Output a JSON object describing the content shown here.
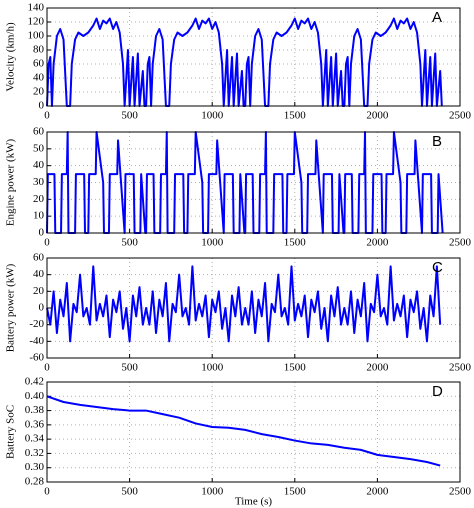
{
  "chart_data": [
    {
      "type": "line",
      "ylabel": "Velocity (km/h)",
      "annotation": "A",
      "color": "#0000ff",
      "grid": true,
      "xlim": [
        0,
        2500
      ],
      "xticks": [
        0,
        500,
        1000,
        1500,
        2000,
        2500
      ],
      "ylim": [
        0,
        140
      ],
      "yticks": [
        0,
        20,
        40,
        60,
        80,
        100,
        120,
        140
      ],
      "x": [
        0,
        10,
        20,
        30,
        40,
        60,
        80,
        100,
        120,
        140,
        150,
        170,
        190,
        220,
        250,
        280,
        300,
        320,
        340,
        360,
        380,
        400,
        420,
        440,
        460,
        470,
        490,
        500,
        520,
        530,
        550,
        560,
        580,
        590,
        600,
        610,
        620,
        630,
        640,
        660,
        680,
        700,
        720,
        740,
        750,
        770,
        790,
        820,
        850,
        880,
        900,
        920,
        940,
        960,
        980,
        1000,
        1020,
        1040,
        1060,
        1070,
        1090,
        1100,
        1120,
        1130,
        1150,
        1160,
        1180,
        1190,
        1200,
        1210,
        1220,
        1230,
        1240,
        1260,
        1280,
        1300,
        1320,
        1340,
        1350,
        1370,
        1390,
        1420,
        1450,
        1480,
        1500,
        1520,
        1540,
        1560,
        1580,
        1600,
        1620,
        1640,
        1660,
        1670,
        1690,
        1700,
        1720,
        1730,
        1750,
        1760,
        1780,
        1790,
        1800,
        1810,
        1820,
        1830,
        1840,
        1860,
        1880,
        1900,
        1920,
        1940,
        1950,
        1970,
        1990,
        2020,
        2050,
        2080,
        2100,
        2120,
        2140,
        2160,
        2180,
        2200,
        2220,
        2240,
        2260,
        2270,
        2290,
        2300,
        2320,
        2330,
        2350,
        2360,
        2380,
        2390
      ],
      "values": [
        0,
        60,
        70,
        0,
        60,
        100,
        110,
        95,
        0,
        0,
        60,
        95,
        105,
        100,
        105,
        115,
        125,
        110,
        122,
        118,
        125,
        110,
        120,
        105,
        60,
        0,
        80,
        0,
        70,
        0,
        75,
        0,
        50,
        0,
        0,
        60,
        70,
        0,
        60,
        100,
        110,
        95,
        0,
        0,
        60,
        95,
        105,
        100,
        105,
        115,
        125,
        110,
        122,
        118,
        125,
        110,
        120,
        105,
        60,
        0,
        80,
        0,
        70,
        0,
        75,
        0,
        50,
        0,
        0,
        60,
        70,
        0,
        60,
        100,
        110,
        95,
        0,
        0,
        60,
        95,
        105,
        100,
        105,
        115,
        125,
        110,
        122,
        118,
        125,
        110,
        120,
        105,
        60,
        0,
        80,
        0,
        70,
        0,
        75,
        0,
        50,
        0,
        0,
        60,
        70,
        0,
        60,
        100,
        110,
        95,
        0,
        0,
        60,
        95,
        105,
        100,
        105,
        115,
        125,
        110,
        122,
        118,
        125,
        110,
        120,
        105,
        60,
        0,
        80,
        0,
        70,
        0,
        75,
        0,
        50,
        0
      ]
    },
    {
      "type": "line",
      "ylabel": "Engine power (kW)",
      "annotation": "B",
      "color": "#0000ff",
      "grid": true,
      "xlim": [
        0,
        2500
      ],
      "xticks": [
        0,
        500,
        1000,
        1500,
        2000,
        2500
      ],
      "ylim": [
        0,
        60
      ],
      "yticks": [
        0,
        10,
        20,
        30,
        40,
        50,
        60
      ],
      "x": [
        0,
        5,
        45,
        50,
        85,
        90,
        120,
        125,
        130,
        170,
        175,
        225,
        230,
        250,
        255,
        295,
        300,
        340,
        345,
        375,
        380,
        425,
        430,
        470,
        475,
        525,
        530,
        565,
        570,
        595,
        600,
        605,
        645,
        650,
        685,
        690,
        720,
        725,
        730,
        770,
        775,
        825,
        830,
        850,
        855,
        895,
        900,
        940,
        945,
        975,
        980,
        1025,
        1030,
        1070,
        1075,
        1125,
        1130,
        1165,
        1170,
        1195,
        1200,
        1205,
        1245,
        1250,
        1285,
        1290,
        1320,
        1325,
        1330,
        1370,
        1375,
        1425,
        1430,
        1450,
        1455,
        1495,
        1500,
        1540,
        1545,
        1575,
        1580,
        1625,
        1630,
        1670,
        1675,
        1725,
        1730,
        1765,
        1770,
        1795,
        1800,
        1805,
        1845,
        1850,
        1885,
        1890,
        1920,
        1925,
        1930,
        1970,
        1975,
        2025,
        2030,
        2050,
        2055,
        2095,
        2100,
        2140,
        2145,
        2175,
        2180,
        2225,
        2230,
        2270,
        2275,
        2325,
        2330,
        2365,
        2370,
        2395
      ],
      "values": [
        0,
        35,
        35,
        0,
        0,
        35,
        35,
        60,
        0,
        0,
        35,
        35,
        0,
        0,
        35,
        35,
        60,
        30,
        0,
        0,
        35,
        35,
        55,
        0,
        35,
        35,
        0,
        0,
        35,
        0,
        0,
        35,
        35,
        0,
        0,
        35,
        35,
        60,
        0,
        0,
        35,
        35,
        0,
        0,
        35,
        35,
        60,
        30,
        0,
        0,
        35,
        35,
        55,
        0,
        35,
        35,
        0,
        0,
        35,
        0,
        0,
        35,
        35,
        0,
        0,
        35,
        35,
        60,
        0,
        0,
        35,
        35,
        0,
        0,
        35,
        35,
        60,
        30,
        0,
        0,
        35,
        35,
        55,
        0,
        35,
        35,
        0,
        0,
        35,
        0,
        0,
        35,
        35,
        0,
        0,
        35,
        35,
        60,
        0,
        0,
        35,
        35,
        0,
        0,
        35,
        35,
        60,
        30,
        0,
        0,
        35,
        35,
        55,
        0,
        35,
        35,
        0,
        0,
        35,
        0
      ]
    },
    {
      "type": "line",
      "ylabel": "Battery power (kW)",
      "annotation": "C",
      "color": "#0000ff",
      "grid": true,
      "xlim": [
        0,
        2500
      ],
      "xticks": [
        0,
        500,
        1000,
        1500,
        2000,
        2500
      ],
      "ylim": [
        -60,
        60
      ],
      "yticks": [
        -60,
        -40,
        -20,
        0,
        20,
        40,
        60
      ],
      "x": [
        0,
        20,
        40,
        60,
        80,
        100,
        120,
        140,
        160,
        180,
        200,
        220,
        240,
        260,
        280,
        300,
        320,
        340,
        360,
        380,
        400,
        420,
        440,
        460,
        480,
        500,
        520,
        540,
        560,
        580,
        600,
        620,
        640,
        660,
        680,
        700,
        720,
        740,
        760,
        780,
        800,
        820,
        840,
        860,
        880,
        900,
        920,
        940,
        960,
        980,
        1000,
        1020,
        1040,
        1060,
        1080,
        1100,
        1120,
        1140,
        1160,
        1180,
        1200,
        1220,
        1240,
        1260,
        1280,
        1300,
        1320,
        1340,
        1360,
        1380,
        1400,
        1420,
        1440,
        1460,
        1480,
        1500,
        1520,
        1540,
        1560,
        1580,
        1600,
        1620,
        1640,
        1660,
        1680,
        1700,
        1720,
        1740,
        1760,
        1780,
        1800,
        1820,
        1840,
        1860,
        1880,
        1900,
        1920,
        1940,
        1960,
        1980,
        2000,
        2020,
        2040,
        2060,
        2080,
        2100,
        2120,
        2140,
        2160,
        2180,
        2200,
        2220,
        2240,
        2260,
        2280,
        2300,
        2320,
        2340,
        2360,
        2380
      ],
      "values": [
        0,
        -20,
        20,
        -30,
        10,
        -10,
        30,
        -40,
        5,
        -5,
        40,
        -10,
        0,
        -20,
        50,
        -15,
        5,
        -10,
        15,
        -35,
        10,
        -5,
        20,
        -25,
        0,
        -40,
        15,
        -10,
        25,
        -20,
        0,
        -20,
        20,
        -30,
        10,
        -10,
        30,
        -40,
        5,
        -5,
        40,
        -10,
        0,
        -20,
        50,
        -15,
        5,
        -10,
        15,
        -35,
        10,
        -5,
        20,
        -25,
        0,
        -40,
        15,
        -10,
        25,
        -20,
        0,
        -20,
        20,
        -30,
        10,
        -10,
        30,
        -40,
        5,
        -5,
        40,
        -10,
        0,
        -20,
        50,
        -15,
        5,
        -10,
        15,
        -35,
        10,
        -5,
        20,
        -25,
        0,
        -40,
        15,
        -10,
        25,
        -20,
        0,
        -20,
        20,
        -30,
        10,
        -10,
        30,
        -40,
        5,
        -5,
        40,
        -10,
        0,
        -20,
        50,
        -15,
        5,
        -10,
        15,
        -35,
        10,
        -5,
        20,
        -25,
        0,
        -40,
        15,
        -10,
        50,
        -20
      ]
    },
    {
      "type": "line",
      "ylabel": "Battery SoC",
      "xlabel": "Time (s)",
      "annotation": "D",
      "color": "#0000ff",
      "grid": true,
      "xlim": [
        0,
        2500
      ],
      "xticks": [
        0,
        500,
        1000,
        1500,
        2000,
        2500
      ],
      "ylim": [
        0.28,
        0.42
      ],
      "yticks": [
        0.28,
        {
          "value": 0.3,
          "label": "0.30"
        },
        0.32,
        0.34,
        0.36,
        0.38,
        {
          "value": 0.4,
          "label": "0.40"
        },
        0.42
      ],
      "x": [
        0,
        100,
        200,
        300,
        400,
        500,
        600,
        700,
        800,
        900,
        1000,
        1100,
        1200,
        1300,
        1400,
        1500,
        1600,
        1700,
        1800,
        1900,
        2000,
        2100,
        2200,
        2300,
        2380
      ],
      "values": [
        0.4,
        0.392,
        0.388,
        0.385,
        0.382,
        0.38,
        0.38,
        0.375,
        0.37,
        0.362,
        0.357,
        0.356,
        0.353,
        0.347,
        0.343,
        0.338,
        0.334,
        0.332,
        0.328,
        0.325,
        0.318,
        0.315,
        0.312,
        0.308,
        0.303
      ]
    }
  ]
}
